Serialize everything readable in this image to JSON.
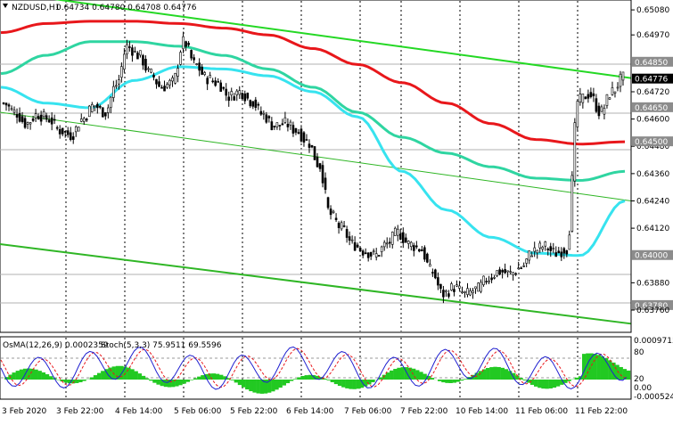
{
  "window": {
    "title": "NZDUSD,H1",
    "ohlc": "0.64734 0.64780 0.64708 0.64776"
  },
  "indicator_panel": {
    "osma_label": "OsMA(12,26,9) 0.0002359",
    "stoch_label": "Stoch(5,3,3) 75.9511 69.5596",
    "scale_labels": [
      "0.0009715",
      "80",
      "20",
      "0.00",
      "-0.000524"
    ]
  },
  "price_scale": {
    "labels": [
      "0.65080",
      "0.64970",
      "0.64850",
      "0.64776",
      "0.64720",
      "0.64600",
      "0.64650",
      "0.64480",
      "0.64500",
      "0.64360",
      "0.64240",
      "0.64120",
      "0.64000",
      "0.63880",
      "0.63780",
      "0.63760"
    ]
  },
  "time_axis": {
    "labels": [
      "3 Feb 2020",
      "3 Feb 22:00",
      "4 Feb 14:00",
      "5 Feb 06:00",
      "5 Feb 22:00",
      "6 Feb 14:00",
      "7 Feb 06:00",
      "7 Feb 22:00",
      "10 Feb 14:00",
      "11 Feb 06:00",
      "11 Feb 22:00"
    ]
  },
  "colors": {
    "candle": "#000000",
    "ma_red": "#e8171b",
    "ma_teal": "#2fd5a1",
    "ma_cyan": "#37e3ef",
    "channel": "#2fb625",
    "channel_bright": "#24d824",
    "osma": "#22c922",
    "stoch_main": "#2020d0",
    "stoch_signal": "#e8171b",
    "tag_dark": "#8c8c8c",
    "tag_light": "#c8c8c8",
    "current_tag": "#000000"
  },
  "chart_data": {
    "type": "candlestick",
    "symbol": "NZDUSD",
    "timeframe": "H1",
    "ylim": [
      0.6376,
      0.651
    ],
    "x_labels": [
      "3 Feb 2020",
      "3 Feb 22:00",
      "4 Feb 14:00",
      "5 Feb 06:00",
      "5 Feb 22:00",
      "6 Feb 14:00",
      "7 Feb 06:00",
      "7 Feb 22:00",
      "10 Feb 14:00",
      "11 Feb 06:00",
      "11 Feb 22:00"
    ],
    "close_path": [
      0.6467,
      0.6463,
      0.6458,
      0.6462,
      0.646,
      0.6455,
      0.6453,
      0.646,
      0.6466,
      0.6463,
      0.6475,
      0.6492,
      0.6488,
      0.648,
      0.6474,
      0.6476,
      0.6494,
      0.6484,
      0.6478,
      0.6476,
      0.647,
      0.6472,
      0.6468,
      0.6462,
      0.6457,
      0.6458,
      0.6455,
      0.645,
      0.644,
      0.6418,
      0.6412,
      0.6405,
      0.6402,
      0.64,
      0.6405,
      0.641,
      0.6405,
      0.6403,
      0.6393,
      0.6383,
      0.6386,
      0.6383,
      0.6385,
      0.639,
      0.6393,
      0.6392,
      0.6395,
      0.6402,
      0.6404,
      0.6401,
      0.6403,
      0.6468,
      0.6471,
      0.6463,
      0.6472,
      0.6478
    ],
    "highlighted_levels": [
      0.6485,
      0.6465,
      0.645,
      0.64,
      0.6378
    ],
    "current_price": 0.64776,
    "series": [
      {
        "name": "",
        "values": [
          0.6498,
          0.6502,
          0.6503,
          0.6503,
          0.6502,
          0.65,
          0.6497,
          0.6491,
          0.6484,
          0.6476,
          0.6467,
          0.6458,
          0.6451,
          0.6449,
          0.645
        ]
      },
      {
        "name": "",
        "values": [
          0.648,
          0.6488,
          0.6494,
          0.6494,
          0.6492,
          0.6488,
          0.6482,
          0.6474,
          0.6463,
          0.6452,
          0.6445,
          0.6439,
          0.6434,
          0.6433,
          0.6437
        ]
      },
      {
        "name": "",
        "values": [
          0.6474,
          0.6467,
          0.6465,
          0.6477,
          0.6483,
          0.6482,
          0.6479,
          0.6472,
          0.6461,
          0.6437,
          0.642,
          0.6408,
          0.6401,
          0.64,
          0.6424
        ]
      }
    ],
    "channel_lines": [
      {
        "from": 0.6516,
        "to": 0.6478
      },
      {
        "from": 0.6463,
        "to": 0.6424
      },
      {
        "from": 0.6405,
        "to": 0.637
      }
    ]
  }
}
